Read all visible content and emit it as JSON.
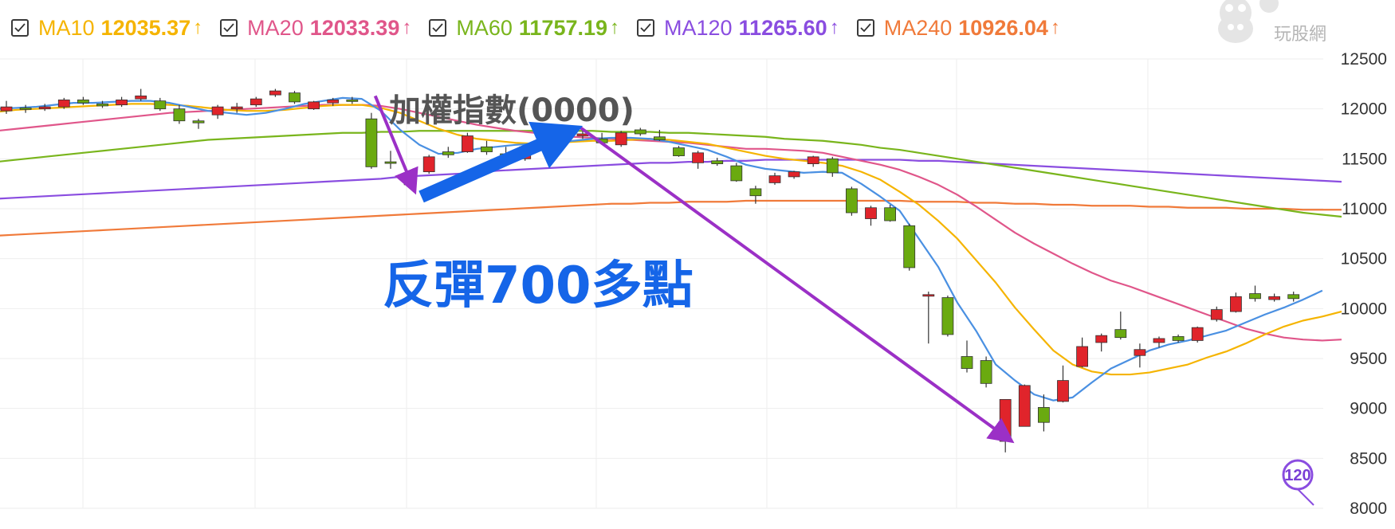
{
  "legend": [
    {
      "name": "MA10",
      "value": "12035.37",
      "arrow": "↑",
      "color": "#f5b400"
    },
    {
      "name": "MA20",
      "value": "12033.39",
      "arrow": "↑",
      "color": "#e0568a"
    },
    {
      "name": "MA60",
      "value": "11757.19",
      "arrow": "↑",
      "color": "#79b51c"
    },
    {
      "name": "MA120",
      "value": "11265.60",
      "arrow": "↑",
      "color": "#8a4de0"
    },
    {
      "name": "MA240",
      "value": "10926.04",
      "arrow": "↑",
      "color": "#f07a3a"
    }
  ],
  "watermark": {
    "text": "玩股網"
  },
  "chart_data": {
    "type": "candlestick",
    "title": "加權指數(0000)",
    "annotation": "反彈700多點",
    "badge": "120",
    "ylim": [
      8000,
      12500
    ],
    "yticks": [
      12500,
      12000,
      11500,
      11000,
      10500,
      10000,
      9500,
      9000,
      8500,
      8000
    ],
    "grid": true,
    "colors": {
      "up": "#e0242b",
      "down": "#6aaa10",
      "ma5": "#4a90e2",
      "ma10": "#f5b400",
      "ma20": "#e0568a",
      "ma60": "#79b51c",
      "ma120": "#8a4de0",
      "ma240": "#f07a3a",
      "arrow": "#9b30c6",
      "annotation": "#1565e8"
    },
    "candles": [
      [
        11980,
        12080,
        11950,
        12020
      ],
      [
        12010,
        12040,
        11960,
        12000
      ],
      [
        12000,
        12050,
        11980,
        12020
      ],
      [
        12020,
        12110,
        12000,
        12090
      ],
      [
        12090,
        12120,
        12040,
        12060
      ],
      [
        12050,
        12080,
        12010,
        12030
      ],
      [
        12040,
        12120,
        12020,
        12090
      ],
      [
        12100,
        12200,
        12080,
        12130
      ],
      [
        12080,
        12110,
        11980,
        12000
      ],
      [
        12000,
        12040,
        11850,
        11880
      ],
      [
        11880,
        11900,
        11800,
        11860
      ],
      [
        11940,
        12040,
        11900,
        12020
      ],
      [
        12000,
        12060,
        11960,
        12020
      ],
      [
        12040,
        12120,
        12020,
        12100
      ],
      [
        12140,
        12200,
        12120,
        12180
      ],
      [
        12160,
        12180,
        12050,
        12070
      ],
      [
        12000,
        12080,
        11990,
        12070
      ],
      [
        12060,
        12110,
        12030,
        12090
      ],
      [
        12090,
        12120,
        12050,
        12080
      ],
      [
        11900,
        11960,
        11400,
        11420
      ],
      [
        11470,
        11580,
        11400,
        11460
      ],
      [
        11240,
        11360,
        11200,
        11290
      ],
      [
        11370,
        11540,
        11350,
        11520
      ],
      [
        11570,
        11620,
        11510,
        11540
      ],
      [
        11570,
        11760,
        11560,
        11730
      ],
      [
        11620,
        11680,
        11540,
        11570
      ],
      [
        11550,
        11620,
        11500,
        11520
      ],
      [
        11500,
        11640,
        11480,
        11620
      ],
      [
        11620,
        11720,
        11600,
        11700
      ],
      [
        11690,
        11760,
        11650,
        11740
      ],
      [
        11730,
        11790,
        11700,
        11750
      ],
      [
        11700,
        11760,
        11640,
        11660
      ],
      [
        11640,
        11780,
        11620,
        11760
      ],
      [
        11790,
        11810,
        11730,
        11750
      ],
      [
        11720,
        11790,
        11680,
        11690
      ],
      [
        11610,
        11630,
        11520,
        11530
      ],
      [
        11460,
        11580,
        11400,
        11560
      ],
      [
        11480,
        11510,
        11430,
        11450
      ],
      [
        11430,
        11460,
        11270,
        11280
      ],
      [
        11200,
        11230,
        11050,
        11130
      ],
      [
        11260,
        11360,
        11240,
        11330
      ],
      [
        11320,
        11380,
        11300,
        11370
      ],
      [
        11450,
        11530,
        11420,
        11520
      ],
      [
        11500,
        11520,
        11320,
        11360
      ],
      [
        11200,
        11220,
        10930,
        10960
      ],
      [
        10900,
        11030,
        10830,
        11010
      ],
      [
        11010,
        11040,
        10870,
        10880
      ],
      [
        10830,
        10850,
        10380,
        10410
      ],
      [
        10130,
        10170,
        9650,
        10140
      ],
      [
        10110,
        10130,
        9720,
        9740
      ],
      [
        9520,
        9680,
        9360,
        9400
      ],
      [
        9480,
        9520,
        9210,
        9250
      ],
      [
        8670,
        9090,
        8560,
        9090
      ],
      [
        8820,
        9240,
        8820,
        9230
      ],
      [
        9010,
        9140,
        8770,
        8860
      ],
      [
        9070,
        9430,
        9060,
        9280
      ],
      [
        9420,
        9710,
        9410,
        9620
      ],
      [
        9660,
        9750,
        9570,
        9730
      ],
      [
        9790,
        9970,
        9690,
        9710
      ],
      [
        9530,
        9650,
        9410,
        9590
      ],
      [
        9660,
        9720,
        9610,
        9700
      ],
      [
        9720,
        9740,
        9660,
        9680
      ],
      [
        9680,
        9820,
        9660,
        9810
      ],
      [
        9890,
        10020,
        9870,
        9990
      ],
      [
        9970,
        10160,
        9960,
        10120
      ],
      [
        10150,
        10230,
        10070,
        10100
      ],
      [
        10090,
        10150,
        10070,
        10120
      ],
      [
        10140,
        10170,
        10070,
        10100
      ]
    ],
    "ma5": [
      12000,
      12010,
      12020,
      12040,
      12060,
      12060,
      12070,
      12080,
      12080,
      12060,
      12020,
      11980,
      11960,
      11940,
      11960,
      12000,
      12050,
      12080,
      12110,
      12100,
      11980,
      11790,
      11640,
      11550,
      11560,
      11600,
      11620,
      11640,
      11650,
      11660,
      11680,
      11700,
      11710,
      11710,
      11700,
      11670,
      11630,
      11590,
      11520,
      11440,
      11400,
      11380,
      11360,
      11370,
      11360,
      11250,
      11120,
      10980,
      10700,
      10420,
      10060,
      9770,
      9440,
      9280,
      9140,
      9080,
      9110,
      9260,
      9400,
      9490,
      9580,
      9640,
      9680,
      9730,
      9780,
      9860,
      9940,
      10010,
      10090,
      10180
    ],
    "ma10": [
      11970,
      11990,
      12000,
      12010,
      12020,
      12030,
      12040,
      12050,
      12050,
      12040,
      12030,
      12010,
      11990,
      11980,
      11980,
      11990,
      12010,
      12030,
      12040,
      12040,
      12010,
      11960,
      11880,
      11800,
      11740,
      11700,
      11680,
      11660,
      11650,
      11660,
      11670,
      11680,
      11680,
      11690,
      11700,
      11690,
      11670,
      11650,
      11610,
      11570,
      11530,
      11500,
      11480,
      11460,
      11430,
      11370,
      11290,
      11170,
      11040,
      10880,
      10700,
      10480,
      10260,
      10010,
      9790,
      9580,
      9440,
      9370,
      9340,
      9340,
      9360,
      9400,
      9440,
      9510,
      9570,
      9650,
      9740,
      9820,
      9880,
      9920,
      9970
    ],
    "ma20": [
      11780,
      11800,
      11820,
      11840,
      11860,
      11880,
      11900,
      11920,
      11940,
      11960,
      11970,
      11980,
      11990,
      12000,
      12010,
      12020,
      12030,
      12040,
      12040,
      12040,
      12030,
      12000,
      11960,
      11920,
      11880,
      11840,
      11810,
      11780,
      11760,
      11740,
      11720,
      11710,
      11700,
      11690,
      11680,
      11670,
      11660,
      11640,
      11620,
      11600,
      11600,
      11590,
      11580,
      11560,
      11520,
      11480,
      11440,
      11390,
      11320,
      11240,
      11140,
      11020,
      10890,
      10760,
      10650,
      10550,
      10450,
      10360,
      10280,
      10220,
      10150,
      10080,
      10010,
      9940,
      9870,
      9800,
      9750,
      9710,
      9690,
      9680,
      9690
    ],
    "ma60": [
      11470,
      11490,
      11510,
      11530,
      11550,
      11570,
      11590,
      11610,
      11630,
      11650,
      11670,
      11690,
      11700,
      11710,
      11720,
      11730,
      11740,
      11750,
      11760,
      11760,
      11770,
      11770,
      11780,
      11780,
      11780,
      11780,
      11780,
      11780,
      11780,
      11780,
      11780,
      11780,
      11770,
      11770,
      11770,
      11760,
      11760,
      11750,
      11740,
      11730,
      11720,
      11700,
      11690,
      11680,
      11660,
      11640,
      11610,
      11590,
      11560,
      11530,
      11500,
      11470,
      11440,
      11410,
      11380,
      11350,
      11320,
      11290,
      11260,
      11230,
      11200,
      11170,
      11140,
      11110,
      11080,
      11050,
      11020,
      10990,
      10960,
      10940,
      10920
    ],
    "ma120": [
      11100,
      11110,
      11120,
      11130,
      11140,
      11150,
      11160,
      11170,
      11180,
      11190,
      11200,
      11210,
      11220,
      11230,
      11240,
      11250,
      11260,
      11270,
      11280,
      11290,
      11300,
      11320,
      11330,
      11340,
      11350,
      11360,
      11380,
      11390,
      11400,
      11410,
      11420,
      11430,
      11440,
      11450,
      11460,
      11460,
      11470,
      11470,
      11480,
      11480,
      11490,
      11490,
      11490,
      11490,
      11490,
      11490,
      11490,
      11490,
      11480,
      11480,
      11470,
      11460,
      11450,
      11440,
      11430,
      11420,
      11410,
      11400,
      11390,
      11380,
      11370,
      11360,
      11350,
      11340,
      11330,
      11320,
      11310,
      11300,
      11290,
      11280,
      11270
    ],
    "ma240": [
      10730,
      10740,
      10750,
      10760,
      10770,
      10780,
      10790,
      10800,
      10810,
      10820,
      10830,
      10840,
      10850,
      10860,
      10870,
      10880,
      10890,
      10900,
      10910,
      10920,
      10930,
      10940,
      10950,
      10960,
      10970,
      10980,
      10990,
      11000,
      11010,
      11020,
      11030,
      11040,
      11050,
      11050,
      11060,
      11060,
      11070,
      11070,
      11070,
      11080,
      11080,
      11080,
      11080,
      11080,
      11080,
      11080,
      11080,
      11080,
      11070,
      11070,
      11070,
      11060,
      11060,
      11050,
      11050,
      11040,
      11040,
      11030,
      11030,
      11030,
      11020,
      11020,
      11010,
      11010,
      11010,
      11000,
      11000,
      11000,
      10990,
      10990,
      10990
    ],
    "arrows": [
      {
        "from": [
          19.2,
          12130
        ],
        "to": [
          21.2,
          11200
        ],
        "style": "purple"
      },
      {
        "from": [
          29.9,
          11810
        ],
        "to": [
          52.2,
          8690
        ],
        "style": "purple"
      }
    ],
    "rebound_arrow": {
      "from": [
        21.6,
        11120
      ],
      "to": [
        30.0,
        11830
      ]
    }
  }
}
